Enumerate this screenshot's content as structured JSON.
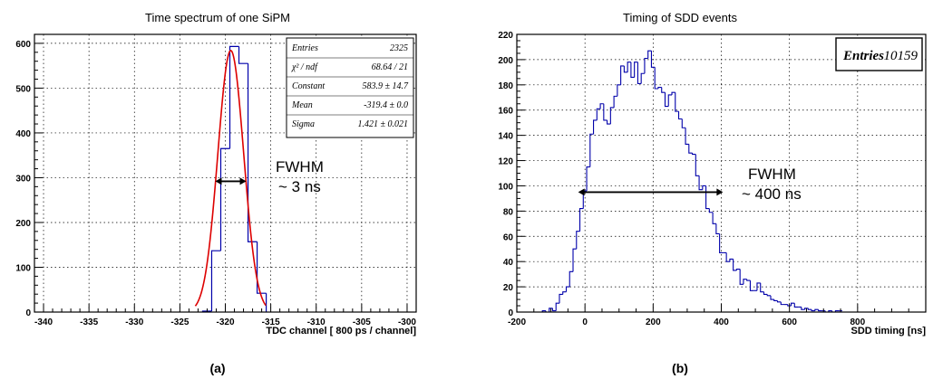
{
  "chart_data": [
    {
      "type": "histogram",
      "title": "Time spectrum of one SiPM",
      "xlabel": "TDC channel [ 800 ps / channel]",
      "ylabel": "",
      "xlim": [
        -341,
        -299
      ],
      "ylim": [
        0,
        620
      ],
      "xticks": [
        "-340",
        "-335",
        "-330",
        "-325",
        "-320",
        "-315",
        "-310",
        "-305",
        "-300"
      ],
      "yticks": [
        "0",
        "100",
        "200",
        "300",
        "400",
        "500",
        "600"
      ],
      "grid": true,
      "bins": [
        {
          "x": -322,
          "y": 2
        },
        {
          "x": -321,
          "y": 137
        },
        {
          "x": -320,
          "y": 365
        },
        {
          "x": -319,
          "y": 593
        },
        {
          "x": -318,
          "y": 555
        },
        {
          "x": -317,
          "y": 157
        },
        {
          "x": -316,
          "y": 42
        }
      ],
      "fit": {
        "name": "gaus",
        "constant": 583.9,
        "mean": -319.4,
        "sigma": 1.421,
        "color": "#dd0000"
      },
      "stats_box": {
        "rows": [
          {
            "label": "Entries",
            "value": "2325"
          },
          {
            "label": "χ² / ndf",
            "value": "68.64 / 21"
          },
          {
            "label": "Constant",
            "value": "583.9 ±  14.7"
          },
          {
            "label": "Mean",
            "value": "-319.4 ± 0.0"
          },
          {
            "label": "Sigma",
            "value": "1.421 ± 0.021"
          }
        ]
      },
      "annotation": {
        "line1": "FWHM",
        "line2": "~ 3 ns",
        "arrow_from": -321.1,
        "arrow_to": -317.7,
        "arrow_y": 292
      },
      "panel_label": "(a)",
      "color": "#0000aa"
    },
    {
      "type": "histogram",
      "title": "Timing of SDD events",
      "xlabel": "SDD timing [ns]",
      "ylabel": "",
      "xlim": [
        -200,
        1000
      ],
      "ylim": [
        0,
        220
      ],
      "xticks": [
        "-200",
        "0",
        "200",
        "400",
        "600",
        "800"
      ],
      "yticks": [
        "0",
        "20",
        "40",
        "60",
        "80",
        "100",
        "120",
        "140",
        "160",
        "180",
        "200",
        "220"
      ],
      "grid": true,
      "bin_start": -120,
      "bin_width": 10,
      "values": [
        1,
        0,
        3,
        1,
        7,
        14,
        16,
        20,
        32,
        50,
        64,
        82,
        96,
        115,
        141,
        152,
        161,
        165,
        152,
        149,
        162,
        171,
        180,
        195,
        190,
        198,
        186,
        198,
        181,
        189,
        201,
        207,
        194,
        177,
        178,
        174,
        163,
        172,
        174,
        159,
        153,
        146,
        133,
        126,
        125,
        108,
        97,
        100,
        82,
        79,
        70,
        62,
        47,
        47,
        40,
        42,
        33,
        34,
        22,
        26,
        25,
        17,
        17,
        23,
        16,
        14,
        13,
        10,
        9,
        8,
        6,
        6,
        5,
        7,
        4,
        4,
        2,
        3,
        2,
        1,
        2,
        1,
        1,
        0,
        1,
        0,
        1,
        1
      ],
      "stats_box": {
        "rows": [
          {
            "label": "Entries",
            "value": "10159"
          }
        ]
      },
      "annotation": {
        "line1": "FWHM",
        "line2": "~ 400 ns",
        "arrow_from": -20,
        "arrow_to": 405,
        "arrow_y": 95
      },
      "panel_label": "(b)",
      "color": "#0000aa"
    }
  ]
}
